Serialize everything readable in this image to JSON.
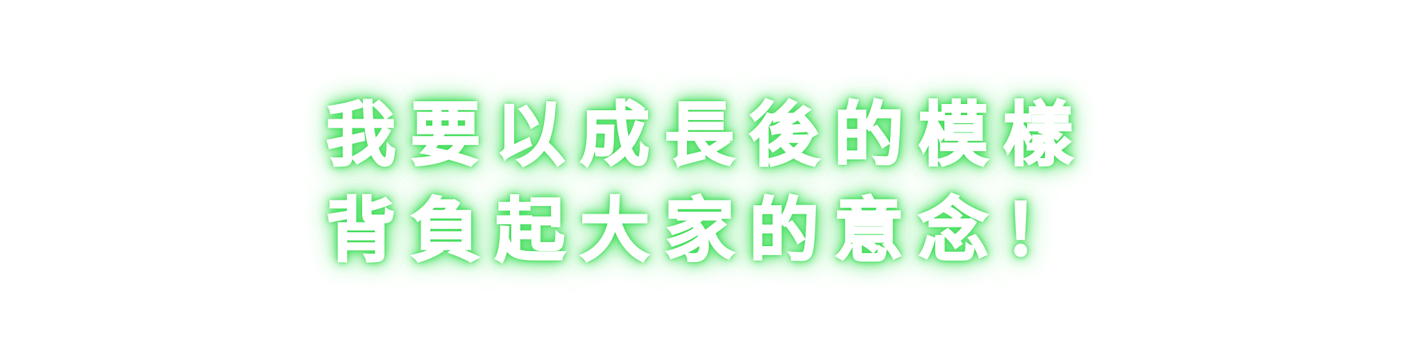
{
  "caption": {
    "line1": "我要以成長後的模樣",
    "line2": "背負起大家的意念！"
  },
  "colors": {
    "background": "#ffffff",
    "text": "#ffffff",
    "glow": "#3ddc55"
  }
}
